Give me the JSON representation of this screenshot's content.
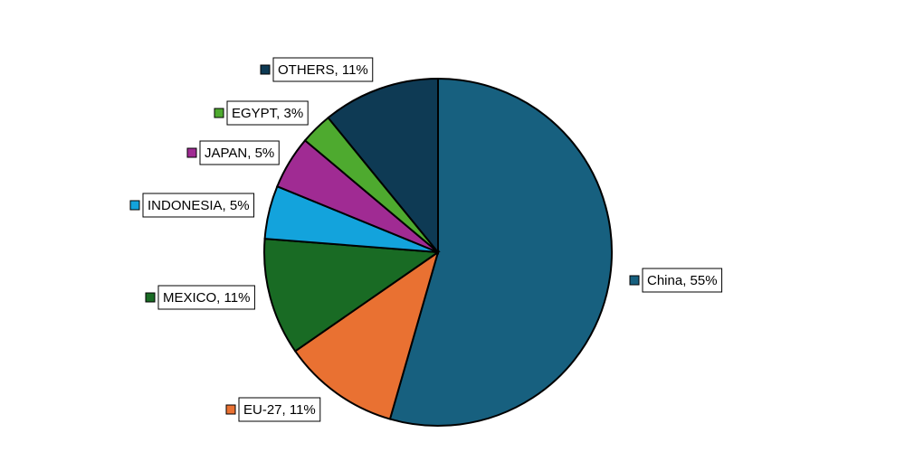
{
  "chart_data": {
    "type": "pie",
    "title": "",
    "start": "12 o'clock",
    "direction": "clockwise",
    "slices": [
      {
        "name": "China",
        "value": 55,
        "color": "#17607f",
        "label": "China, 55%"
      },
      {
        "name": "EU-27",
        "value": 11,
        "color": "#e97132",
        "label": "EU-27, 11%"
      },
      {
        "name": "MEXICO",
        "value": 11,
        "color": "#196b24",
        "label": "MEXICO, 11%"
      },
      {
        "name": "INDONESIA",
        "value": 5,
        "color": "#13a3dc",
        "label": "INDONESIA, 5%"
      },
      {
        "name": "JAPAN",
        "value": 5,
        "color": "#a02b93",
        "label": "JAPAN, 5%"
      },
      {
        "name": "EGYPT",
        "value": 3,
        "color": "#4eaa2f",
        "label": "EGYPT, 3%"
      },
      {
        "name": "OTHERS",
        "value": 11,
        "color": "#0e3a54",
        "label": "OTHERS, 11%"
      }
    ]
  }
}
